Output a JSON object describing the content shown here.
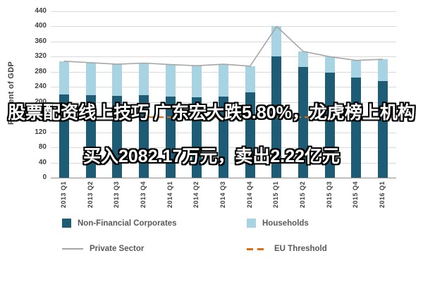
{
  "overlay": {
    "line1": "股票配资线上技巧 广东宏大跌5.80%，龙虎榜上机构",
    "line2": "买入2082.17万元，卖出2.22亿元"
  },
  "chart_data": {
    "type": "bar",
    "stacked": true,
    "title": "",
    "ylabel": "Per Cent of GDP",
    "ylim": [
      0,
      440
    ],
    "yticks": [
      440,
      400,
      360,
      320,
      280,
      240,
      200,
      160,
      120,
      80,
      40,
      0
    ],
    "grid": true,
    "legend_position": "bottom",
    "categories": [
      "2013 Q1",
      "2013 Q2",
      "2013 Q3",
      "2013 Q4",
      "2014 Q1",
      "2014 Q2",
      "2014 Q3",
      "2014 Q4",
      "2015 Q1",
      "2015 Q2",
      "2015 Q3",
      "2015 Q4",
      "2016 Q1"
    ],
    "series": [
      {
        "name": "Non-Financial Corporates",
        "color": "#1d5c74",
        "values": [
          220,
          218,
          216,
          218,
          215,
          213,
          215,
          225,
          320,
          292,
          278,
          264,
          255
        ]
      },
      {
        "name": "Households",
        "color": "#a7d3e2",
        "values": [
          88,
          86,
          84,
          85,
          84,
          83,
          85,
          70,
          80,
          42,
          42,
          46,
          58
        ]
      }
    ],
    "line_series": [
      {
        "name": "Private Sector",
        "color": "#a6a6a6",
        "style": "solid",
        "values": [
          308,
          304,
          300,
          303,
          299,
          296,
          300,
          295,
          400,
          334,
          320,
          310,
          313
        ]
      }
    ],
    "threshold": {
      "name": "EU Threshold",
      "color": "#e46c0a",
      "style": "dashed",
      "value": 160
    },
    "legend": [
      {
        "label": "Non-Financial Corporates",
        "swatch": "square",
        "color": "#1d5c74"
      },
      {
        "label": "Households",
        "swatch": "square",
        "color": "#a7d3e2"
      },
      {
        "label": "Private Sector",
        "swatch": "line",
        "color": "#a6a6a6"
      },
      {
        "label": "EU Threshold",
        "swatch": "dashed-line",
        "color": "#e46c0a"
      }
    ],
    "colors": {
      "grid": "#d9d9d9",
      "axis_text": "#404040",
      "background": "#ffffff"
    }
  }
}
